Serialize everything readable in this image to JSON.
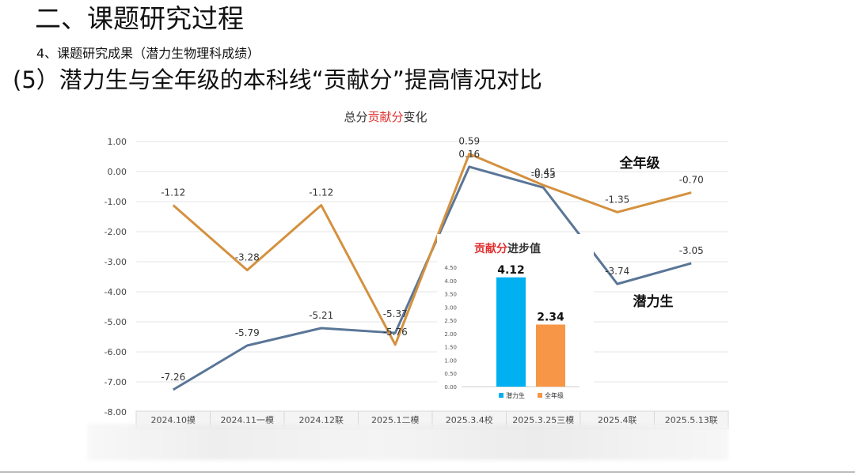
{
  "slide": {
    "title": "二、课题研究过程",
    "subtitle": "4、课题研究成果（潜力生物理科成绩）",
    "heading": "(5）潜力生与全年级的本科线“贡献分”提高情况对比"
  },
  "chart_data": [
    {
      "type": "line",
      "title_parts": [
        "总分",
        "贡献分",
        "变化"
      ],
      "categories": [
        "2024.10摸",
        "2024.11一模",
        "2024.12联",
        "2025.1二模",
        "2025.3.4校",
        "2025.3.25三模",
        "2025.4联",
        "2025.5.13联"
      ],
      "series": [
        {
          "name": "潜力生",
          "values": [
            -7.26,
            -5.79,
            -5.21,
            -5.37,
            0.16,
            -0.53,
            -3.74,
            -3.05
          ],
          "labels": [
            "-7.26",
            "-5.79",
            "-5.21",
            "-5.37",
            "0.16",
            "-0.53",
            "-3.74",
            "-3.05"
          ],
          "color": "#5a7697"
        },
        {
          "name": "全年级",
          "values": [
            -1.12,
            -3.28,
            -1.12,
            -5.76,
            0.59,
            -0.45,
            -1.35,
            -0.7
          ],
          "labels": [
            "-1.12",
            "-3.28",
            "-1.12",
            "-5.76",
            "0.59",
            "-0.45",
            "-1.35",
            "-0.70"
          ],
          "color": "#d4913f"
        }
      ],
      "y_ticks": [
        "1.00",
        "0.00",
        "-1.00",
        "-2.00",
        "-3.00",
        "-4.00",
        "-5.00",
        "-6.00",
        "-7.00",
        "-8.00"
      ],
      "ylim": [
        -8,
        1
      ],
      "grid": true
    },
    {
      "type": "bar",
      "title_parts": [
        "贡献分",
        "进步值"
      ],
      "categories": [
        "潜力生",
        "全年级"
      ],
      "values": [
        4.12,
        2.34
      ],
      "labels": [
        "4.12",
        "2.34"
      ],
      "colors": [
        "#00b0f0",
        "#f79646"
      ],
      "y_ticks": [
        "4.50",
        "4.00",
        "3.50",
        "3.00",
        "2.50",
        "2.00",
        "1.50",
        "1.00",
        "0.50",
        "0.00"
      ],
      "ylim": [
        0,
        4.5
      ]
    }
  ],
  "annotations": {
    "grade_label": "全年级",
    "potential_label": "潜力生"
  },
  "colors": {
    "title_red": "#e03030",
    "grid": "#e4e4e4"
  }
}
